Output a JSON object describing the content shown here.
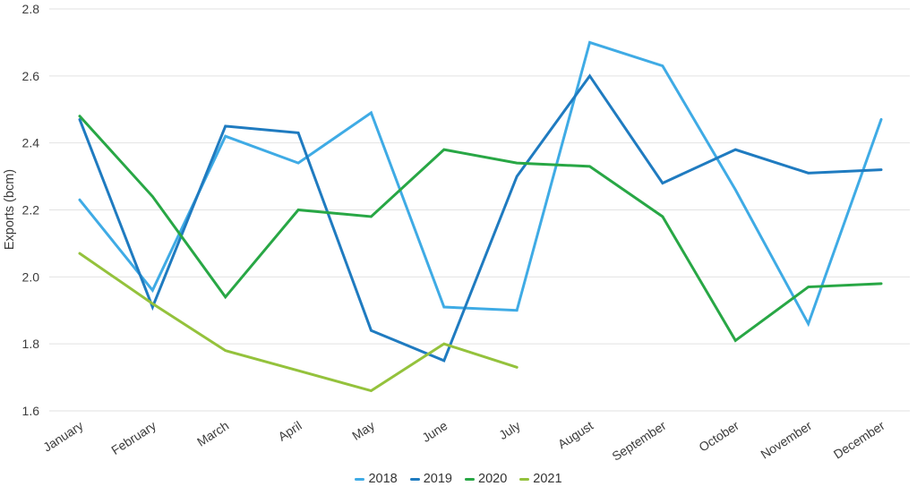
{
  "chart_data": {
    "type": "line",
    "title": "",
    "xlabel": "",
    "ylabel": "Exports (bcm)",
    "ylim": [
      1.6,
      2.8
    ],
    "yticks": [
      2.8,
      2.6,
      2.4,
      2.2,
      2.0,
      1.8,
      1.6
    ],
    "grid": "horizontal",
    "gridline_color": "#e2e2e2",
    "text_color": "#3c3c3c",
    "legend_position": "bottom-center",
    "categories": [
      "January",
      "February",
      "March",
      "April",
      "May",
      "June",
      "July",
      "August",
      "September",
      "October",
      "November",
      "December"
    ],
    "series": [
      {
        "name": "2018",
        "color": "#3fabe5",
        "values": [
          2.23,
          1.96,
          2.42,
          2.34,
          2.49,
          1.91,
          1.9,
          2.7,
          2.63,
          2.26,
          1.86,
          2.47
        ]
      },
      {
        "name": "2019",
        "color": "#1f7bc0",
        "values": [
          2.47,
          1.91,
          2.45,
          2.43,
          1.84,
          1.75,
          2.3,
          2.6,
          2.28,
          2.38,
          2.31,
          2.32
        ]
      },
      {
        "name": "2020",
        "color": "#28a745",
        "values": [
          2.48,
          2.24,
          1.94,
          2.2,
          2.18,
          2.38,
          2.34,
          2.33,
          2.18,
          1.81,
          1.97,
          1.98
        ]
      },
      {
        "name": "2021",
        "color": "#94c23c",
        "values": [
          2.07,
          1.92,
          1.78,
          1.72,
          1.66,
          1.8,
          1.73,
          null,
          null,
          null,
          null,
          null
        ]
      }
    ]
  }
}
